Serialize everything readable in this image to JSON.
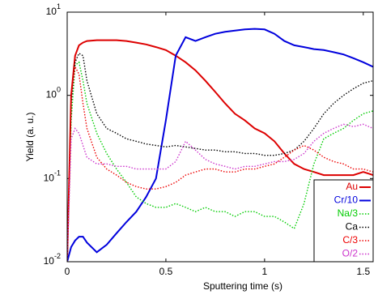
{
  "chart_data": {
    "type": "line",
    "xlabel": "Sputtering time (s)",
    "ylabel": "Yield (a. u.)",
    "x": [
      0,
      0.02,
      0.04,
      0.06,
      0.08,
      0.1,
      0.15,
      0.2,
      0.25,
      0.3,
      0.35,
      0.4,
      0.45,
      0.5,
      0.55,
      0.6,
      0.65,
      0.7,
      0.75,
      0.8,
      0.85,
      0.9,
      0.95,
      1.0,
      1.05,
      1.1,
      1.15,
      1.2,
      1.25,
      1.3,
      1.35,
      1.4,
      1.45,
      1.5,
      1.55
    ],
    "xlim": [
      0,
      1.55
    ],
    "xticks": [
      0,
      0.5,
      1,
      1.5
    ],
    "ylim": [
      0.01,
      10
    ],
    "yscale": "log",
    "yticks": [
      {
        "value": 0.01,
        "label": "10",
        "exponent": "-2"
      },
      {
        "value": 0.1,
        "label": "10",
        "exponent": "-1"
      },
      {
        "value": 1,
        "label": "10",
        "exponent": "0"
      },
      {
        "value": 10,
        "label": "10",
        "exponent": "1"
      }
    ],
    "grid": false,
    "legend": "lower right",
    "series": [
      {
        "name": "Au",
        "color": "#dd0000",
        "linestyle": "solid",
        "values": [
          0.01,
          1,
          3,
          4,
          4.3,
          4.5,
          4.6,
          4.6,
          4.6,
          4.5,
          4.3,
          4.1,
          3.8,
          3.5,
          3,
          2.5,
          2,
          1.5,
          1.1,
          0.8,
          0.6,
          0.5,
          0.4,
          0.35,
          0.28,
          0.2,
          0.15,
          0.13,
          0.12,
          0.11,
          0.11,
          0.11,
          0.11,
          0.12,
          0.11
        ]
      },
      {
        "name": "Cr/10",
        "color": "#0000dd",
        "linestyle": "solid",
        "values": [
          0.01,
          0.015,
          0.018,
          0.02,
          0.02,
          0.017,
          0.013,
          0.016,
          0.022,
          0.03,
          0.04,
          0.06,
          0.1,
          0.5,
          3,
          5,
          4.5,
          5,
          5.5,
          5.8,
          6,
          6.2,
          6.3,
          6.2,
          5.5,
          4.5,
          4,
          3.8,
          3.6,
          3.5,
          3.3,
          3.1,
          2.8,
          2.5,
          2.2
        ]
      },
      {
        "name": "Na/3",
        "color": "#00cc00",
        "linestyle": "dotted",
        "values": [
          0.01,
          0.5,
          2.3,
          2.5,
          1.5,
          0.8,
          0.35,
          0.2,
          0.13,
          0.09,
          0.06,
          0.05,
          0.045,
          0.045,
          0.05,
          0.045,
          0.04,
          0.045,
          0.04,
          0.04,
          0.035,
          0.04,
          0.04,
          0.035,
          0.035,
          0.03,
          0.025,
          0.05,
          0.15,
          0.3,
          0.35,
          0.4,
          0.5,
          0.6,
          0.65
        ]
      },
      {
        "name": "Ca",
        "color": "#000000",
        "linestyle": "dotted",
        "values": [
          0.01,
          0.8,
          2.5,
          3.2,
          3,
          1.5,
          0.6,
          0.4,
          0.35,
          0.3,
          0.28,
          0.26,
          0.25,
          0.24,
          0.25,
          0.24,
          0.23,
          0.22,
          0.22,
          0.21,
          0.21,
          0.2,
          0.2,
          0.19,
          0.19,
          0.2,
          0.22,
          0.28,
          0.4,
          0.6,
          0.8,
          1,
          1.2,
          1.4,
          1.5
        ]
      },
      {
        "name": "C/3",
        "color": "#ee0000",
        "linestyle": "dotted",
        "values": [
          0.01,
          1,
          2.2,
          1.8,
          0.8,
          0.4,
          0.18,
          0.13,
          0.11,
          0.09,
          0.08,
          0.075,
          0.075,
          0.08,
          0.09,
          0.11,
          0.12,
          0.13,
          0.13,
          0.12,
          0.12,
          0.13,
          0.13,
          0.14,
          0.15,
          0.18,
          0.22,
          0.25,
          0.22,
          0.18,
          0.16,
          0.15,
          0.13,
          0.13,
          0.12
        ]
      },
      {
        "name": "O/2",
        "color": "#cc33cc",
        "linestyle": "dotted",
        "values": [
          0.01,
          0.3,
          0.4,
          0.35,
          0.25,
          0.18,
          0.15,
          0.15,
          0.14,
          0.14,
          0.13,
          0.13,
          0.13,
          0.13,
          0.16,
          0.28,
          0.22,
          0.17,
          0.15,
          0.14,
          0.13,
          0.14,
          0.14,
          0.15,
          0.16,
          0.16,
          0.17,
          0.2,
          0.28,
          0.35,
          0.4,
          0.45,
          0.42,
          0.45,
          0.4
        ]
      }
    ]
  }
}
